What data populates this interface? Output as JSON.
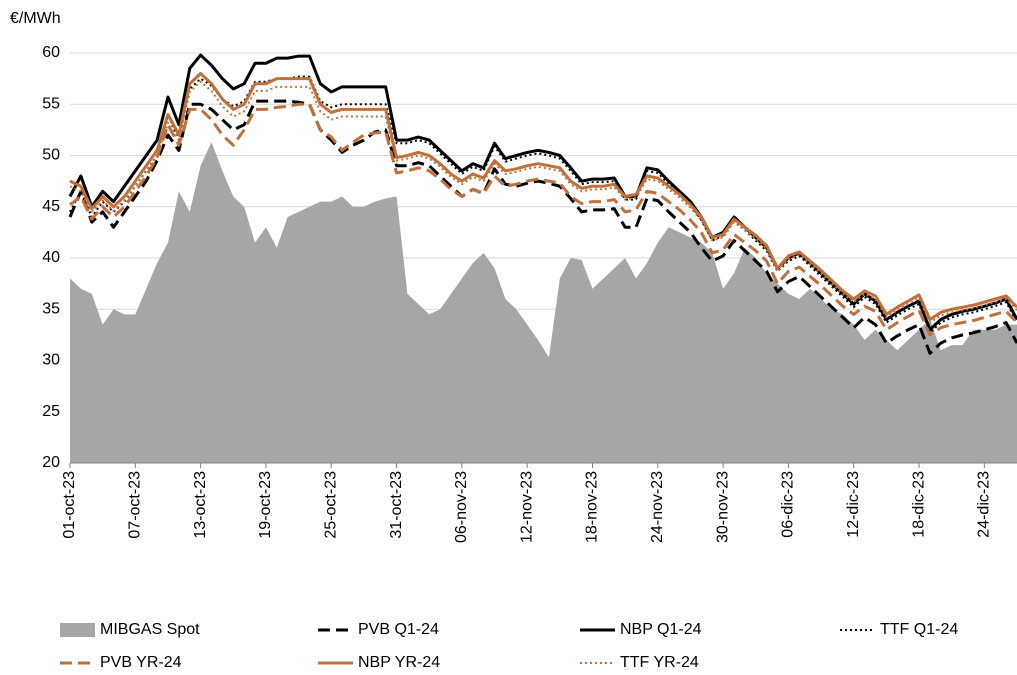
{
  "chart_data": {
    "type": "line",
    "y_label": "€/MWh",
    "categories": [
      "01-oct-23",
      null,
      null,
      null,
      null,
      null,
      "07-oct-23",
      null,
      null,
      null,
      null,
      null,
      "13-oct-23",
      null,
      null,
      null,
      null,
      null,
      "19-oct-23",
      null,
      null,
      null,
      null,
      null,
      "25-oct-23",
      null,
      null,
      null,
      null,
      null,
      "31-oct-23",
      null,
      null,
      null,
      null,
      null,
      "06-nov-23",
      null,
      null,
      null,
      null,
      null,
      "12-nov-23",
      null,
      null,
      null,
      null,
      null,
      "18-nov-23",
      null,
      null,
      null,
      null,
      null,
      "24-nov-23",
      null,
      null,
      null,
      null,
      null,
      "30-nov-23",
      null,
      null,
      null,
      null,
      null,
      "06-dic-23",
      null,
      null,
      null,
      null,
      null,
      "12-dic-23",
      null,
      null,
      null,
      null,
      null,
      "18-dic-23",
      null,
      null,
      null,
      null,
      null,
      "24-dic-23",
      null,
      null,
      null
    ],
    "ylim": [
      20,
      60
    ],
    "yticks": [
      20,
      25,
      30,
      35,
      40,
      45,
      50,
      55,
      60
    ],
    "grid": true,
    "legend": "bottom",
    "series": [
      {
        "name": "MIBGAS Spot",
        "kind": "area",
        "color": "#a6a6a6",
        "values": [
          38,
          37,
          36.5,
          33.5,
          35,
          34.5,
          34.5,
          37,
          39.5,
          41.5,
          46.5,
          44.5,
          49,
          51.3,
          48.5,
          46,
          45,
          41.5,
          43,
          41,
          44,
          44.5,
          45,
          45.5,
          45.5,
          46,
          45,
          45,
          45.5,
          45.8,
          46,
          36.5,
          35.5,
          34.5,
          35,
          36.5,
          38,
          39.5,
          40.5,
          39,
          36,
          35,
          33.5,
          32,
          30.3,
          38,
          40,
          39.8,
          37,
          38,
          39,
          40,
          38,
          39.5,
          41.5,
          43,
          42.5,
          42,
          41.5,
          40.5,
          37,
          38.5,
          41,
          40,
          38.5,
          37.5,
          36.5,
          36,
          37,
          36,
          35,
          34.5,
          33.5,
          32,
          33,
          32,
          31,
          32,
          33,
          34,
          31,
          31.5,
          31.5,
          33,
          33,
          33,
          33.5,
          33.5
        ]
      },
      {
        "name": "PVB Q1-24",
        "dash": "dashed",
        "color": "#000000",
        "values": [
          44,
          46.5,
          43.5,
          44.5,
          43,
          44.5,
          46,
          47.5,
          49.5,
          52,
          50.5,
          55,
          55,
          54.5,
          53.5,
          52.5,
          53,
          55.3,
          55.3,
          55.3,
          55.3,
          55.2,
          55,
          52.5,
          51.5,
          50.3,
          51,
          51.5,
          52.3,
          52.5,
          49,
          49,
          49.3,
          49,
          48,
          47,
          46,
          46.7,
          46.3,
          48.7,
          47.2,
          47,
          47.3,
          47.5,
          47.3,
          47,
          45.8,
          44.5,
          44.7,
          44.7,
          44.8,
          43,
          43,
          45.8,
          45.6,
          44.5,
          43.5,
          42.5,
          41,
          39.7,
          40.2,
          41.7,
          40.7,
          39.7,
          38.7,
          36.7,
          37.7,
          38.2,
          37.2,
          36.2,
          35.2,
          34.2,
          33.2,
          34.2,
          33.5,
          31.7,
          32.4,
          33,
          33.5,
          30.7,
          31.7,
          32.2,
          32.5,
          32.7,
          33,
          33.3,
          33.7,
          31.7
        ]
      },
      {
        "name": "NBP Q1-24",
        "dash": "solid",
        "color": "#000000",
        "values": [
          46,
          48,
          45,
          46.5,
          45.5,
          47,
          48.5,
          50,
          51.5,
          55.7,
          53,
          58.5,
          59.8,
          58.8,
          57.5,
          56.5,
          57,
          59,
          59,
          59.5,
          59.5,
          59.7,
          59.7,
          57,
          56.2,
          56.7,
          56.7,
          56.7,
          56.7,
          56.7,
          51.5,
          51.5,
          51.8,
          51.5,
          50.5,
          49.5,
          48.5,
          49.2,
          48.8,
          51.2,
          49.7,
          50,
          50.3,
          50.5,
          50.3,
          50,
          48.8,
          47.5,
          47.7,
          47.7,
          47.8,
          46,
          46,
          48.8,
          48.6,
          47.5,
          46.5,
          45.5,
          44,
          42,
          42.5,
          44,
          43,
          42,
          41,
          39,
          40,
          40.5,
          39.5,
          38.5,
          37.5,
          36.5,
          35.5,
          36.5,
          35.8,
          34,
          34.7,
          35.3,
          35.8,
          33,
          34,
          34.5,
          34.8,
          35,
          35.3,
          35.6,
          36,
          34
        ]
      },
      {
        "name": "TTF Q1-24",
        "dash": "dotted",
        "color": "#000000",
        "values": [
          44.5,
          46.5,
          44,
          45.5,
          44.5,
          45.5,
          47,
          48.5,
          50,
          54,
          51.5,
          56.5,
          57.5,
          56.8,
          55.5,
          54.8,
          55.3,
          57.2,
          57.2,
          57.5,
          57.5,
          57.7,
          57.7,
          55.3,
          54.7,
          55,
          55,
          55,
          55,
          55,
          51.2,
          51.2,
          51.5,
          51.2,
          50.2,
          49.2,
          48.2,
          48.9,
          48.5,
          50.9,
          49.4,
          49.7,
          50,
          50.2,
          50,
          49.7,
          48.5,
          47.2,
          47.4,
          47.4,
          47.5,
          45.7,
          45.7,
          48.5,
          48.3,
          47.2,
          46.2,
          45.2,
          43.7,
          41.7,
          42.2,
          43.7,
          42.7,
          41.7,
          40.7,
          38.7,
          39.7,
          40.2,
          39.2,
          38.2,
          37.2,
          36.2,
          35.2,
          36.2,
          35.5,
          33.7,
          34.4,
          35,
          35.5,
          32.7,
          33.7,
          34.2,
          34.5,
          34.7,
          35,
          35.3,
          35.7,
          33.7
        ]
      },
      {
        "name": "PVB YR-24",
        "dash": "dashed",
        "color": "#c0703a",
        "values": [
          45.2,
          46,
          43.8,
          45,
          44,
          45,
          46.5,
          48,
          49.8,
          53,
          51,
          54.5,
          54.5,
          53.5,
          52,
          51,
          52.5,
          54.5,
          54.5,
          54.7,
          54.8,
          55,
          55,
          52.5,
          51.8,
          50.5,
          51.3,
          52,
          52.2,
          52.3,
          48.3,
          48.5,
          48.8,
          48.5,
          47.7,
          46.7,
          46,
          46.7,
          46.3,
          48,
          47,
          47.2,
          47.5,
          47.7,
          47.5,
          47.3,
          46,
          45.3,
          45.5,
          45.5,
          45.7,
          44.5,
          44.7,
          46.5,
          46.3,
          45.5,
          44.7,
          43.7,
          42.5,
          40.5,
          40.8,
          42.3,
          41.5,
          40.7,
          39.7,
          37.5,
          38.7,
          39.1,
          38.2,
          37.3,
          36.3,
          35.3,
          34.5,
          35.3,
          34.8,
          33,
          33.7,
          34.3,
          34.9,
          32.5,
          33.2,
          33.5,
          33.7,
          33.9,
          34.2,
          34.5,
          34.8,
          33.7
        ]
      },
      {
        "name": "NBP YR-24",
        "dash": "solid",
        "color": "#c0703a",
        "values": [
          47.5,
          47,
          44.8,
          46,
          45,
          46,
          47.5,
          49,
          50.5,
          54,
          52,
          57,
          58,
          57,
          55.5,
          54.5,
          55,
          57,
          57,
          57.5,
          57.5,
          57.5,
          57.5,
          55,
          54.2,
          54.5,
          54.5,
          54.5,
          54.5,
          54.5,
          49.8,
          50,
          50.3,
          50,
          49.2,
          48.2,
          47.5,
          48.2,
          47.8,
          49.5,
          48.5,
          48.7,
          49,
          49.2,
          49,
          48.8,
          47.5,
          46.8,
          47,
          47,
          47.2,
          46,
          46.2,
          48,
          47.8,
          47,
          46.2,
          45.2,
          44,
          42,
          42.3,
          43.8,
          43,
          42.2,
          41.2,
          39,
          40.2,
          40.6,
          39.7,
          38.8,
          37.8,
          36.8,
          36,
          36.8,
          36.3,
          34.5,
          35.2,
          35.8,
          36.4,
          34,
          34.7,
          35,
          35.2,
          35.4,
          35.7,
          36,
          36.3,
          35.2
        ]
      },
      {
        "name": "TTF YR-24",
        "dash": "dotted",
        "color": "#c0703a",
        "values": [
          47,
          46.5,
          44.5,
          45.6,
          44.6,
          45.6,
          47,
          48.5,
          50,
          53.2,
          51.5,
          56.2,
          57.2,
          56.3,
          54.8,
          53.8,
          54.3,
          56.3,
          56.3,
          56.7,
          56.7,
          56.7,
          56.7,
          54.3,
          53.5,
          53.8,
          53.8,
          53.8,
          53.8,
          53.8,
          49.5,
          49.7,
          50,
          49.7,
          48.9,
          47.9,
          47.2,
          47.9,
          47.5,
          49.2,
          48.2,
          48.4,
          48.7,
          48.9,
          48.7,
          48.5,
          47.2,
          46.5,
          46.7,
          46.7,
          46.9,
          45.7,
          45.9,
          47.7,
          47.5,
          46.7,
          45.9,
          44.9,
          43.7,
          41.7,
          42,
          43.5,
          42.7,
          41.9,
          40.9,
          38.7,
          39.9,
          40.3,
          39.4,
          38.5,
          37.5,
          36.5,
          35.7,
          36.5,
          36,
          34.2,
          34.9,
          35.5,
          36.1,
          33.7,
          34.4,
          34.7,
          34.9,
          35.1,
          35.4,
          35.7,
          36,
          34.9
        ]
      }
    ]
  }
}
